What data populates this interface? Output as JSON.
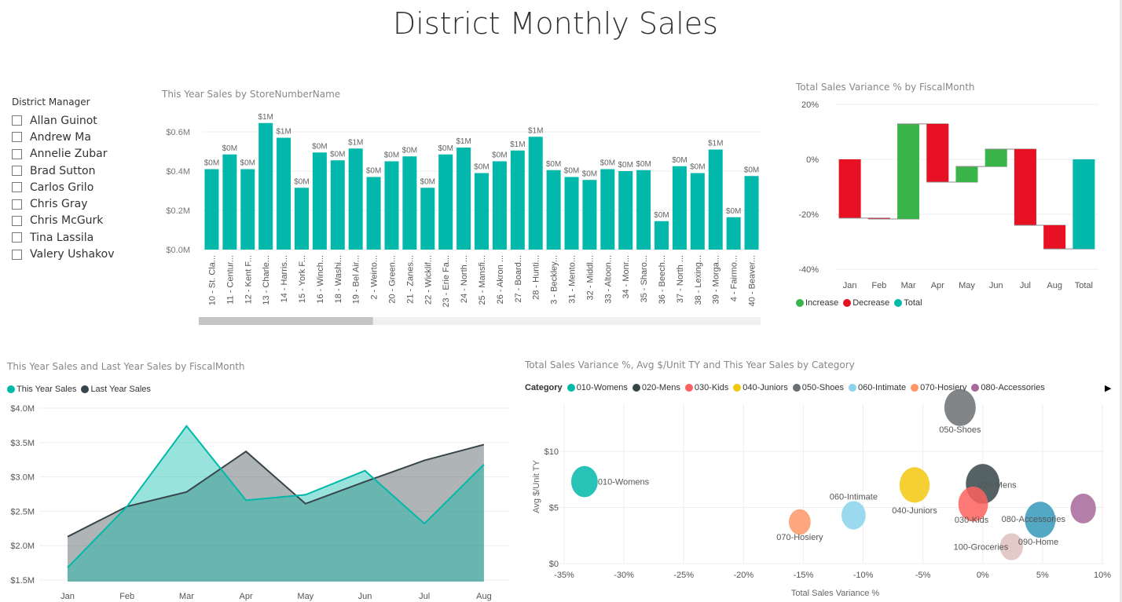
{
  "page_title": "District Monthly Sales",
  "slicer": {
    "title": "District Manager",
    "items": [
      "Allan Guinot",
      "Andrew Ma",
      "Annelie Zubar",
      "Brad Sutton",
      "Carlos Grilo",
      "Chris Gray",
      "Chris McGurk",
      "Tina Lassila",
      "Valery Ushakov"
    ]
  },
  "colors": {
    "teal": "#01B8AA",
    "increase": "#3AB54A",
    "decrease": "#E81123",
    "ly": "#374649"
  },
  "chart_data": [
    {
      "type": "bar",
      "title": "This Year Sales by StoreNumberName",
      "categories": [
        "10 - St. Cla...",
        "11 - Centur...",
        "12 - Kent F...",
        "13 - Charle...",
        "14 - Harris...",
        "15 - York F...",
        "16 - Winch...",
        "18 - Washi...",
        "19 - Bel Air...",
        "2 - Weirto...",
        "20 - Green...",
        "21 - Zanes...",
        "22 - Wicklif...",
        "23 - Erie Fa...",
        "24 - North ...",
        "25 - Mansfi...",
        "26 - Akron ...",
        "27 - Board...",
        "28 - Hunti...",
        "3 - Beckley...",
        "31 - Mento...",
        "32 - Middl...",
        "33 - Altoon...",
        "34 - Monr...",
        "35 - Sharo...",
        "36 - Beech...",
        "37 - North ...",
        "38 - Lexing...",
        "39 - Morga...",
        "4 - Fairmo...",
        "40 - Beaver..."
      ],
      "values": [
        0.41,
        0.485,
        0.41,
        0.645,
        0.57,
        0.315,
        0.495,
        0.455,
        0.515,
        0.37,
        0.45,
        0.475,
        0.315,
        0.485,
        0.52,
        0.39,
        0.45,
        0.505,
        0.575,
        0.405,
        0.37,
        0.355,
        0.41,
        0.4,
        0.405,
        0.145,
        0.425,
        0.39,
        0.51,
        0.165,
        0.375
      ],
      "data_labels": [
        "$0M",
        "$0M",
        "$0M",
        "$1M",
        "$1M",
        "$0M",
        "$0M",
        "$0M",
        "$1M",
        "$0M",
        "$0M",
        "$0M",
        "$0M",
        "$0M",
        "$1M",
        "$0M",
        "$0M",
        "$1M",
        "$1M",
        "$0M",
        "$0M",
        "$0M",
        "$0M",
        "$0M",
        "$0M",
        "$0M",
        "$0M",
        "$0M",
        "$1M",
        "$0M",
        "$0M"
      ],
      "yticks": [
        "$0.0M",
        "$0.2M",
        "$0.4M",
        "$0.6M"
      ],
      "ylim": [
        0,
        0.65
      ],
      "unit": "$M",
      "grid": true,
      "scrollbar_position": 0.31
    },
    {
      "type": "waterfall",
      "title": "Total Sales Variance % by FiscalMonth",
      "categories": [
        "Jan",
        "Feb",
        "Mar",
        "Apr",
        "May",
        "Jun",
        "Jul",
        "Aug",
        "Total"
      ],
      "values": [
        -21.4,
        -0.3,
        34.6,
        -21.2,
        5.7,
        6.3,
        -27.7,
        -8.6,
        -32.6
      ],
      "yticks": [
        "20%",
        "0%",
        "-20%",
        "-40%"
      ],
      "ylim": [
        -45,
        20
      ],
      "legend": [
        "Increase",
        "Decrease",
        "Total"
      ],
      "legend_position": "bottom-left"
    },
    {
      "type": "area",
      "title": "This Year Sales and Last Year Sales by FiscalMonth",
      "categories": [
        "Jan",
        "Feb",
        "Mar",
        "Apr",
        "May",
        "Jun",
        "Jul",
        "Aug"
      ],
      "series": [
        {
          "name": "This Year Sales",
          "values": [
            1.68,
            2.57,
            3.74,
            2.66,
            2.74,
            3.09,
            2.32,
            3.18
          ]
        },
        {
          "name": "Last Year Sales",
          "values": [
            2.13,
            2.57,
            2.78,
            3.37,
            2.61,
            2.93,
            3.24,
            3.47
          ]
        }
      ],
      "yticks": [
        "$1.5M",
        "$2.0M",
        "$2.5M",
        "$3.0M",
        "$3.5M",
        "$4.0M"
      ],
      "ylim": [
        1.5,
        4.1
      ],
      "legend_position": "top-left",
      "grid": true
    },
    {
      "type": "scatter",
      "title": "Total Sales Variance %, Avg $/Unit TY and This Year Sales by Category",
      "legend_title": "Category",
      "legend": [
        "010-Womens",
        "020-Mens",
        "030-Kids",
        "040-Juniors",
        "050-Shoes",
        "060-Intimate",
        "070-Hosiery",
        "080-Accessories"
      ],
      "xlabel": "Total Sales Variance %",
      "ylabel": "Avg $/Unit TY",
      "xticks": [
        "-35%",
        "-30%",
        "-25%",
        "-20%",
        "-15%",
        "-10%",
        "-5%",
        "0%",
        "5%",
        "10%"
      ],
      "yticks": [
        "$0",
        "$5",
        "$10"
      ],
      "xlim": [
        -35,
        10
      ],
      "ylim": [
        0,
        14.2
      ],
      "points": [
        {
          "label": "050-Shoes",
          "x": -1.9,
          "y": 13.9,
          "size": 0.75,
          "color": "#6B7072"
        },
        {
          "label": "010-Womens",
          "x": -33.3,
          "y": 7.3,
          "size": 0.55,
          "color": "#01B8AA"
        },
        {
          "label": "040-Juniors",
          "x": -5.7,
          "y": 7.0,
          "size": 0.7,
          "color": "#F2C80F"
        },
        {
          "label": "020-Mens",
          "x": 0.0,
          "y": 7.1,
          "size": 0.85,
          "color": "#374649"
        },
        {
          "label": "030-Kids",
          "x": -0.8,
          "y": 5.3,
          "size": 0.68,
          "color": "#FD625E"
        },
        {
          "label": "060-Intimate",
          "x": -10.8,
          "y": 4.3,
          "size": 0.45,
          "color": "#8AD4EB"
        },
        {
          "label": "070-Hosiery",
          "x": -15.3,
          "y": 3.7,
          "size": 0.35,
          "color": "#FE9666"
        },
        {
          "label": "080-Accessories",
          "x": 8.4,
          "y": 4.9,
          "size": 0.5,
          "color": "#A66999"
        },
        {
          "label": "090-Home",
          "x": 4.8,
          "y": 3.9,
          "size": 0.72,
          "color": "#3599B8"
        },
        {
          "label": "100-Groceries",
          "x": 2.4,
          "y": 1.5,
          "size": 0.4,
          "color": "#DFBFBF"
        }
      ],
      "legend_more_icon": "triangle-right-icon"
    }
  ]
}
